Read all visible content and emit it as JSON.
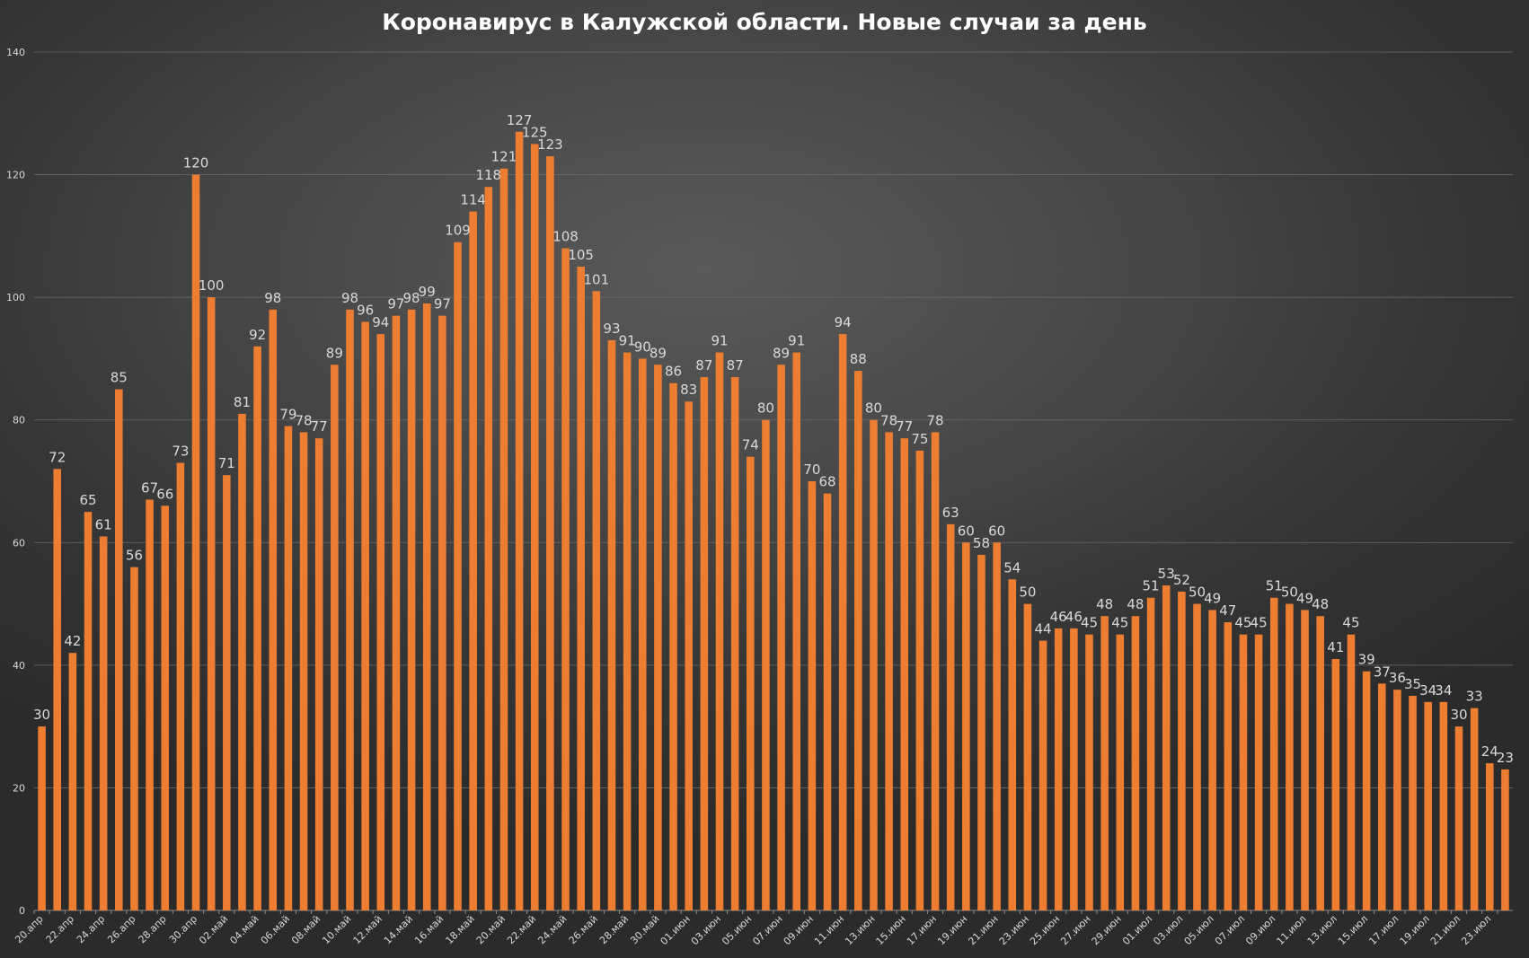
{
  "chart_data": {
    "type": "bar",
    "title": "Коронавирус в Калужской области. Новые случаи за день",
    "xlabel": "",
    "ylabel": "",
    "ylim": [
      0,
      140
    ],
    "yticks": [
      0,
      20,
      40,
      60,
      80,
      100,
      120,
      140
    ],
    "grid": true,
    "legend": "none",
    "bar_color": "#ED7D31",
    "categories": [
      "20.апр",
      "21.апр",
      "22.апр",
      "23.апр",
      "24.апр",
      "25.апр",
      "26.апр",
      "27.апр",
      "28.апр",
      "29.апр",
      "30.апр",
      "01.май",
      "02.май",
      "03.май",
      "04.май",
      "05.май",
      "06.май",
      "07.май",
      "08.май",
      "09.май",
      "10.май",
      "11.май",
      "12.май",
      "13.май",
      "14.май",
      "15.май",
      "16.май",
      "17.май",
      "18.май",
      "19.май",
      "20.май",
      "21.май",
      "22.май",
      "23.май",
      "24.май",
      "25.май",
      "26.май",
      "27.май",
      "28.май",
      "29.май",
      "30.май",
      "31.май",
      "01.июн",
      "02.июн",
      "03.июн",
      "04.июн",
      "05.июн",
      "06.июн",
      "07.июн",
      "08.июн",
      "09.июн",
      "10.июн",
      "11.июн",
      "12.июн",
      "13.июн",
      "14.июн",
      "15.июн",
      "16.июн",
      "17.июн",
      "18.июн",
      "19.июн",
      "20.июн",
      "21.июн",
      "22.июн",
      "23.июн",
      "24.июн",
      "25.июн",
      "26.июн",
      "27.июн",
      "28.июн",
      "29.июн",
      "30.июн",
      "01.июл",
      "02.июл",
      "03.июл",
      "04.июл",
      "05.июл",
      "06.июл",
      "07.июл",
      "08.июл",
      "09.июл",
      "10.июл",
      "11.июл",
      "12.июл",
      "13.июл",
      "14.июл",
      "15.июл",
      "16.июл",
      "17.июл",
      "18.июл",
      "19.июл",
      "20.июл",
      "21.июл",
      "22.июл",
      "23.июл",
      "24.июл"
    ],
    "values": [
      30,
      72,
      42,
      65,
      61,
      85,
      56,
      67,
      66,
      73,
      120,
      100,
      71,
      81,
      92,
      98,
      79,
      78,
      77,
      89,
      98,
      96,
      94,
      97,
      98,
      99,
      97,
      109,
      114,
      118,
      121,
      127,
      125,
      123,
      108,
      105,
      101,
      93,
      91,
      90,
      89,
      86,
      83,
      87,
      91,
      87,
      74,
      80,
      89,
      91,
      70,
      68,
      94,
      88,
      80,
      78,
      77,
      75,
      78,
      63,
      60,
      58,
      60,
      54,
      50,
      44,
      46,
      46,
      45,
      48,
      45,
      48,
      51,
      53,
      52,
      50,
      49,
      47,
      45,
      45,
      51,
      50,
      49,
      48,
      41,
      45,
      39,
      37,
      36,
      35,
      34,
      34,
      30,
      33,
      24,
      23
    ]
  }
}
